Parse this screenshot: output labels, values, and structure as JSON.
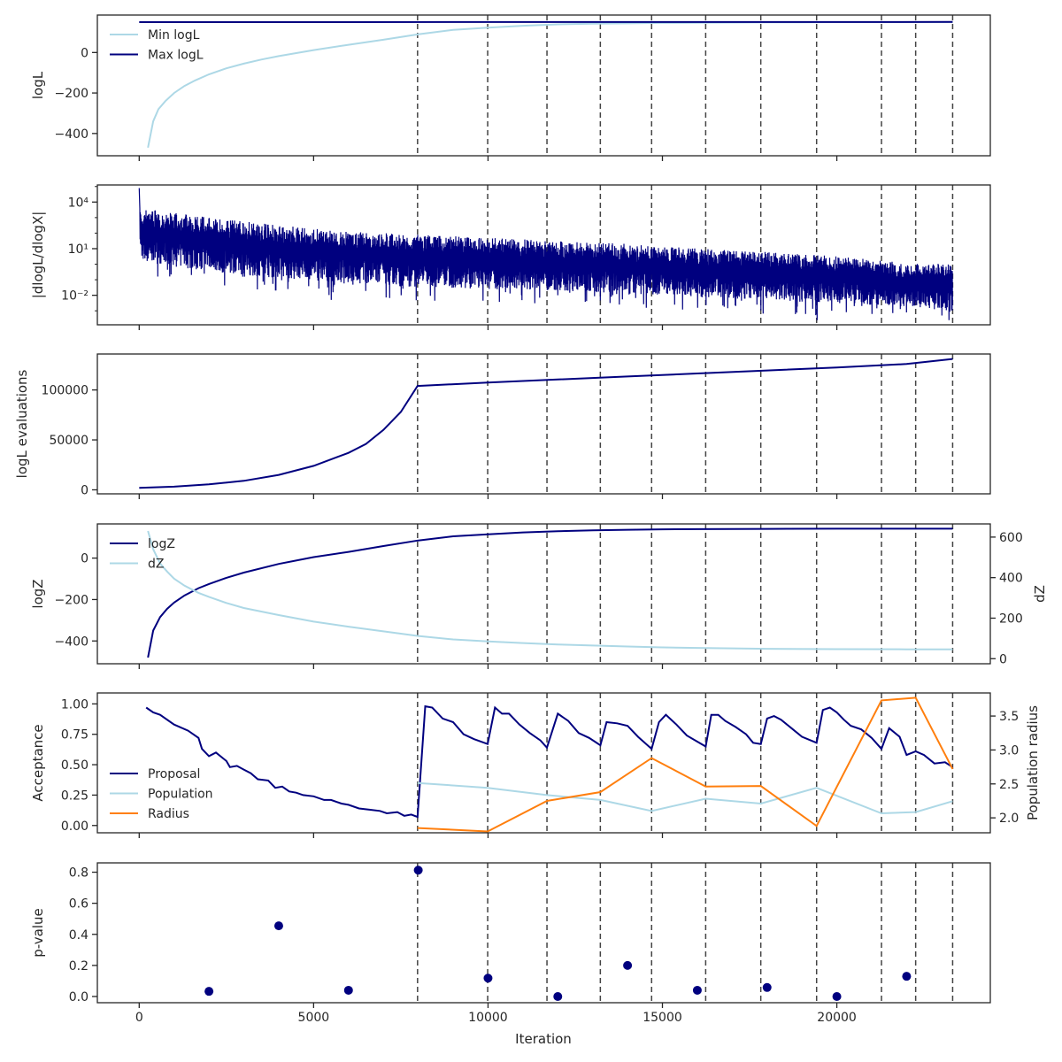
{
  "figure": {
    "xlabel": "Iteration",
    "x_ticks": [
      "0",
      "5000",
      "10000",
      "15000",
      "20000"
    ],
    "x_tick_values": [
      0,
      5000,
      10000,
      15000,
      20000
    ],
    "xlim": [
      -1200,
      24400
    ],
    "vlines": [
      7980,
      9990,
      11690,
      13220,
      14690,
      16240,
      17820,
      19420,
      21280,
      22260,
      23320
    ],
    "colors": {
      "navy": "#00007f",
      "lightblue": "#add8e6",
      "orange": "#ff7f0e",
      "vline": "#444444",
      "axis": "#262626"
    }
  },
  "chart_data": [
    {
      "id": "logL",
      "type": "line",
      "ylabel": "logL",
      "ylim": [
        -510,
        185
      ],
      "y_ticks": [
        0,
        -200,
        -400
      ],
      "y_tick_labels": [
        "0",
        "−200",
        "−400"
      ],
      "legend": "upper-left",
      "series": [
        {
          "name": "Min logL",
          "color": "lightblue",
          "x": [
            250,
            400,
            550,
            750,
            1000,
            1300,
            1600,
            2000,
            2500,
            3000,
            3500,
            4000,
            5000,
            6000,
            7000,
            8000,
            9000,
            10000,
            11000,
            12000,
            13000,
            14000,
            15000,
            16000,
            17000,
            18000,
            19000,
            20000,
            21000,
            22000,
            23320
          ],
          "y": [
            -470,
            -340,
            -280,
            -240,
            -200,
            -165,
            -138,
            -108,
            -78,
            -55,
            -35,
            -18,
            12,
            38,
            63,
            90,
            112,
            123,
            132,
            139,
            142,
            144,
            146,
            147,
            148,
            149,
            149,
            150,
            150,
            150,
            150
          ]
        },
        {
          "name": "Max logL",
          "color": "navy",
          "x": [
            0,
            23320
          ],
          "y": [
            150,
            151
          ]
        }
      ]
    },
    {
      "id": "dlogL",
      "type": "line",
      "ylabel": "|dlogL/dlogX|",
      "yscale": "log",
      "ylim_log10": [
        -3.9,
        5.1
      ],
      "y_ticks_log10": [
        4,
        1,
        -2
      ],
      "y_tick_labels": [
        "10⁴",
        "10¹",
        "10⁻²"
      ],
      "envelope": {
        "x": [
          0,
          2000,
          4000,
          6000,
          8000,
          10000,
          12000,
          14000,
          16000,
          18000,
          20000,
          22000,
          23320
        ],
        "upper_log10": [
          3.6,
          3.0,
          2.5,
          2.1,
          1.9,
          1.7,
          1.5,
          1.3,
          1.0,
          0.8,
          0.5,
          0.1,
          0.0
        ],
        "lower_log10": [
          0.2,
          -0.5,
          -0.9,
          -1.2,
          -1.5,
          -1.6,
          -1.7,
          -1.9,
          -2.1,
          -2.3,
          -2.5,
          -2.8,
          -3.0
        ]
      },
      "spike_start_log10": 4.9,
      "dips_log10": [
        [
          1500,
          -0.7
        ],
        [
          3000,
          -0.8
        ],
        [
          5500,
          -2.3
        ],
        [
          7500,
          -2.0
        ],
        [
          9000,
          -1.5
        ],
        [
          10500,
          -1.8
        ],
        [
          12000,
          -2.0
        ],
        [
          13500,
          -2.5
        ],
        [
          16000,
          -2.8
        ],
        [
          17700,
          -2.6
        ],
        [
          19000,
          -2.4
        ],
        [
          19100,
          -3.2
        ],
        [
          19420,
          -3.6
        ],
        [
          20500,
          -2.7
        ],
        [
          21000,
          -3.2
        ],
        [
          22000,
          -3.1
        ],
        [
          23000,
          -3.3
        ],
        [
          23200,
          -3.6
        ]
      ],
      "series": [
        {
          "color": "navy"
        }
      ]
    },
    {
      "id": "evals",
      "type": "line",
      "ylabel": "logL evaluations",
      "ylim": [
        -4000,
        136000
      ],
      "y_ticks": [
        0,
        50000,
        100000
      ],
      "y_tick_labels": [
        "0",
        "50000",
        "100000"
      ],
      "series": [
        {
          "color": "navy",
          "x": [
            0,
            1000,
            2000,
            3000,
            4000,
            5000,
            6000,
            6500,
            7000,
            7500,
            7980,
            10000,
            12000,
            14000,
            16000,
            18000,
            20000,
            22000,
            23320
          ],
          "y": [
            2000,
            3200,
            5500,
            9000,
            15000,
            24000,
            37000,
            46000,
            60000,
            78000,
            104000,
            107500,
            110500,
            113500,
            116500,
            119500,
            122500,
            126000,
            131000
          ]
        }
      ]
    },
    {
      "id": "logZ",
      "type": "line",
      "ylabel": "logZ",
      "ylabel_right": "dZ",
      "ylim": [
        -510,
        165
      ],
      "y_ticks": [
        0,
        -200,
        -400
      ],
      "y_tick_labels": [
        "0",
        "−200",
        "−400"
      ],
      "y2lim": [
        -25,
        665
      ],
      "y2_ticks": [
        0,
        200,
        400,
        600
      ],
      "y2_tick_labels": [
        "0",
        "200",
        "400",
        "600"
      ],
      "legend": "upper-left",
      "series": [
        {
          "name": "logZ",
          "color": "navy",
          "axis": "left",
          "x": [
            250,
            400,
            600,
            800,
            1000,
            1300,
            1700,
            2000,
            2500,
            3000,
            4000,
            5000,
            6000,
            7000,
            8000,
            9000,
            10000,
            11000,
            12000,
            13000,
            14000,
            15000,
            16000,
            18000,
            20000,
            22000,
            23320
          ],
          "y": [
            -480,
            -350,
            -285,
            -245,
            -215,
            -180,
            -145,
            -125,
            -95,
            -70,
            -28,
            5,
            30,
            58,
            85,
            105,
            115,
            124,
            130,
            134,
            137,
            139,
            140,
            141,
            142,
            142,
            142
          ]
        },
        {
          "name": "dZ",
          "color": "lightblue",
          "axis": "right",
          "x": [
            250,
            400,
            600,
            800,
            1000,
            1300,
            1700,
            2000,
            2500,
            3000,
            4000,
            5000,
            6000,
            7000,
            8000,
            9000,
            10000,
            11000,
            12000,
            13000,
            14000,
            15000,
            16000,
            18000,
            20000,
            22000,
            23320
          ],
          "y": [
            630,
            540,
            470,
            430,
            395,
            360,
            325,
            305,
            275,
            250,
            215,
            183,
            158,
            135,
            112,
            95,
            85,
            77,
            70,
            65,
            60,
            56,
            53,
            49,
            47,
            46,
            46
          ]
        }
      ]
    },
    {
      "id": "acceptance",
      "type": "line",
      "ylabel": "Acceptance",
      "ylabel_right": "Population radius",
      "ylim": [
        -0.06,
        1.09
      ],
      "y_ticks": [
        0,
        0.25,
        0.5,
        0.75,
        1.0
      ],
      "y_tick_labels": [
        "0.00",
        "0.25",
        "0.50",
        "0.75",
        "1.00"
      ],
      "y2lim": [
        1.78,
        3.84
      ],
      "y2_ticks": [
        2.0,
        2.5,
        3.0,
        3.5
      ],
      "y2_tick_labels": [
        "2.0",
        "2.5",
        "3.0",
        "3.5"
      ],
      "legend": "lower-left",
      "series": [
        {
          "name": "Proposal",
          "color": "navy",
          "axis": "left",
          "x": [
            200,
            400,
            600,
            1000,
            1400,
            1700,
            1800,
            2000,
            2200,
            2500,
            2600,
            2800,
            3000,
            3200,
            3400,
            3700,
            3900,
            4100,
            4300,
            4500,
            4700,
            5000,
            5300,
            5500,
            5800,
            6000,
            6300,
            6600,
            6900,
            7100,
            7400,
            7600,
            7800,
            7980,
            8200,
            8400,
            8700,
            9000,
            9300,
            9600,
            9990,
            10200,
            10400,
            10600,
            10900,
            11200,
            11500,
            11690,
            12000,
            12300,
            12600,
            12900,
            13220,
            13400,
            13700,
            14000,
            14300,
            14690,
            14900,
            15100,
            15400,
            15700,
            16000,
            16240,
            16400,
            16600,
            16800,
            17100,
            17400,
            17600,
            17820,
            18000,
            18200,
            18400,
            18700,
            19000,
            19420,
            19600,
            19800,
            20000,
            20200,
            20400,
            20700,
            21000,
            21280,
            21500,
            21800,
            22000,
            22260,
            22500,
            22800,
            23100,
            23320
          ],
          "y": [
            0.97,
            0.93,
            0.91,
            0.83,
            0.78,
            0.72,
            0.63,
            0.57,
            0.6,
            0.53,
            0.48,
            0.49,
            0.46,
            0.43,
            0.38,
            0.37,
            0.31,
            0.32,
            0.28,
            0.27,
            0.25,
            0.24,
            0.21,
            0.21,
            0.18,
            0.17,
            0.14,
            0.13,
            0.12,
            0.1,
            0.11,
            0.08,
            0.09,
            0.07,
            0.98,
            0.97,
            0.88,
            0.85,
            0.75,
            0.71,
            0.67,
            0.97,
            0.92,
            0.92,
            0.83,
            0.76,
            0.7,
            0.64,
            0.92,
            0.86,
            0.76,
            0.72,
            0.66,
            0.85,
            0.84,
            0.82,
            0.73,
            0.63,
            0.85,
            0.91,
            0.83,
            0.74,
            0.69,
            0.65,
            0.91,
            0.91,
            0.86,
            0.81,
            0.75,
            0.68,
            0.67,
            0.88,
            0.9,
            0.87,
            0.8,
            0.73,
            0.68,
            0.95,
            0.97,
            0.93,
            0.87,
            0.82,
            0.79,
            0.72,
            0.63,
            0.8,
            0.73,
            0.58,
            0.61,
            0.58,
            0.51,
            0.52,
            0.48
          ]
        },
        {
          "name": "Population",
          "color": "lightblue",
          "axis": "left",
          "x": [
            7980,
            9990,
            11690,
            13220,
            14690,
            16240,
            17820,
            19420,
            21280,
            22260,
            23320
          ],
          "y": [
            0.35,
            0.31,
            0.25,
            0.21,
            0.12,
            0.22,
            0.18,
            0.31,
            0.1,
            0.11,
            0.2
          ]
        },
        {
          "name": "Radius",
          "color": "orange",
          "axis": "right",
          "x": [
            7980,
            9990,
            11690,
            13220,
            14690,
            16240,
            17820,
            19420,
            21280,
            22260,
            23320
          ],
          "y": [
            1.85,
            1.8,
            2.25,
            2.38,
            2.88,
            2.46,
            2.47,
            1.88,
            3.73,
            3.77,
            2.72
          ]
        }
      ]
    },
    {
      "id": "pvalue",
      "type": "scatter",
      "ylabel": "p-value",
      "ylim": [
        -0.04,
        0.86
      ],
      "y_ticks": [
        0,
        0.2,
        0.4,
        0.6,
        0.8
      ],
      "y_tick_labels": [
        "0.0",
        "0.2",
        "0.4",
        "0.6",
        "0.8"
      ],
      "series": [
        {
          "color": "navy",
          "x": [
            2000,
            4000,
            6000,
            8000,
            10000,
            12000,
            14000,
            16000,
            18000,
            20000,
            22000
          ],
          "y": [
            0.033,
            0.455,
            0.04,
            0.813,
            0.118,
            0.0,
            0.2,
            0.04,
            0.058,
            0.0,
            0.13
          ]
        }
      ]
    }
  ]
}
